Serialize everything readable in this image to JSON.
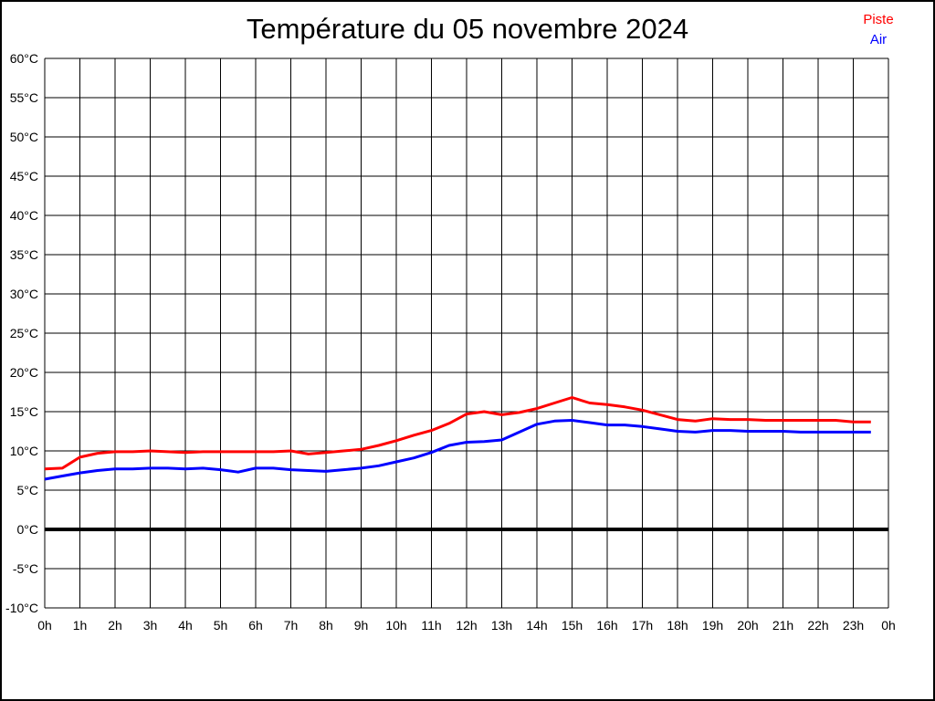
{
  "title": "Température du 05 novembre 2024",
  "legend": {
    "items": [
      {
        "label": "Piste",
        "color": "#ff0000"
      },
      {
        "label": "Air",
        "color": "#0000ff"
      }
    ]
  },
  "colors": {
    "piste": "#ff0000",
    "air": "#0000ff",
    "grid": "#000000",
    "background": "#ffffff"
  },
  "chart_data": {
    "type": "line",
    "title": "Température du 05 novembre 2024",
    "xlabel": "",
    "ylabel": "",
    "x_unit": "hours",
    "x_start": 0,
    "x_step": 0.5,
    "xlim": [
      0,
      24
    ],
    "ylim": [
      -10,
      60
    ],
    "y_tick_step": 5,
    "y_tick_suffix": "°C",
    "x_tick_labels": [
      "0h",
      "1h",
      "2h",
      "3h",
      "4h",
      "5h",
      "6h",
      "7h",
      "8h",
      "9h",
      "10h",
      "11h",
      "12h",
      "13h",
      "14h",
      "15h",
      "16h",
      "17h",
      "18h",
      "19h",
      "20h",
      "21h",
      "22h",
      "23h",
      "0h"
    ],
    "grid": true,
    "zero_line": true,
    "legend_position": "top-right",
    "series": [
      {
        "name": "Piste",
        "color": "#ff0000",
        "values": [
          7.7,
          7.8,
          9.2,
          9.7,
          9.9,
          9.9,
          10.0,
          9.9,
          9.8,
          9.9,
          9.9,
          9.9,
          9.9,
          9.9,
          10.0,
          9.6,
          9.8,
          10.0,
          10.2,
          10.7,
          11.3,
          12.0,
          12.6,
          13.5,
          14.7,
          15.0,
          14.6,
          14.9,
          15.4,
          16.1,
          16.8,
          16.1,
          15.9,
          15.6,
          15.2,
          14.6,
          14.0,
          13.8,
          14.1,
          14.0,
          14.0,
          13.9,
          13.9,
          13.9,
          13.9,
          13.9,
          13.7,
          13.7
        ]
      },
      {
        "name": "Air",
        "color": "#0000ff",
        "values": [
          6.4,
          6.8,
          7.2,
          7.5,
          7.7,
          7.7,
          7.8,
          7.8,
          7.7,
          7.8,
          7.6,
          7.3,
          7.8,
          7.8,
          7.6,
          7.5,
          7.4,
          7.6,
          7.8,
          8.1,
          8.6,
          9.1,
          9.8,
          10.7,
          11.1,
          11.2,
          11.4,
          12.4,
          13.4,
          13.8,
          13.9,
          13.6,
          13.3,
          13.3,
          13.1,
          12.8,
          12.5,
          12.4,
          12.6,
          12.6,
          12.5,
          12.5,
          12.5,
          12.4,
          12.4,
          12.4,
          12.4,
          12.4
        ]
      }
    ]
  }
}
